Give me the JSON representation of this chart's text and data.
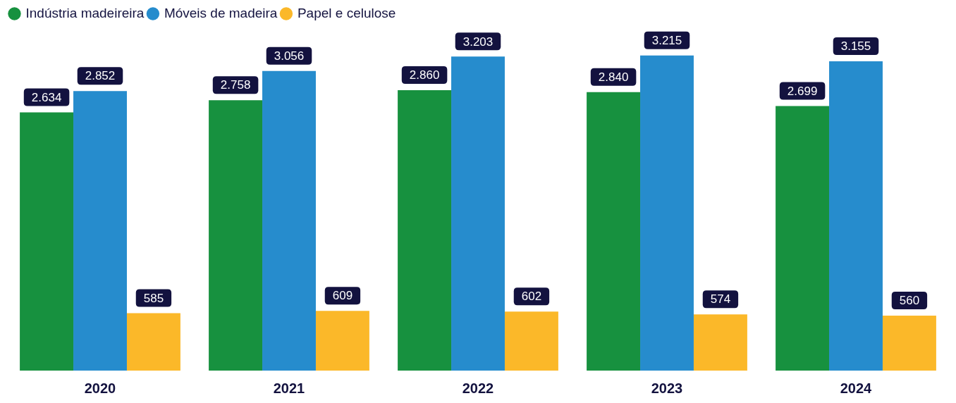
{
  "chart_data": {
    "type": "bar",
    "legend": "top left",
    "categories": [
      "2020",
      "2021",
      "2022",
      "2023",
      "2024"
    ],
    "series": [
      {
        "name": "Indústria madeireira",
        "color": "#17913f",
        "values": [
          2634,
          2758,
          2860,
          2840,
          2699
        ],
        "value_labels": [
          "2.634",
          "2.758",
          "2.860",
          "2.840",
          "2.699"
        ]
      },
      {
        "name": "Móveis de madeira",
        "color": "#268ccd",
        "values": [
          2852,
          3056,
          3203,
          3215,
          3155
        ],
        "value_labels": [
          "2.852",
          "3.056",
          "3.203",
          "3.215",
          "3.155"
        ]
      },
      {
        "name": "Papel e celulose",
        "color": "#fbb829",
        "values": [
          585,
          609,
          602,
          574,
          560
        ],
        "value_labels": [
          "585",
          "609",
          "602",
          "574",
          "560"
        ]
      }
    ]
  }
}
